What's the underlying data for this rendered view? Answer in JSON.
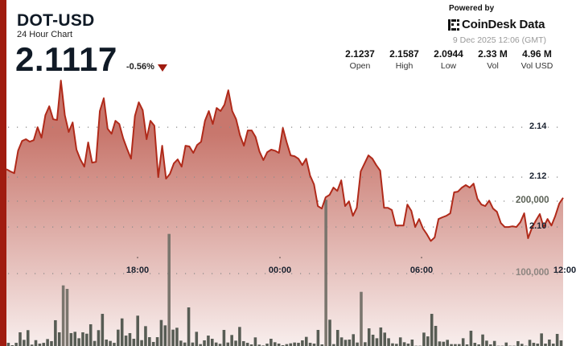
{
  "header": {
    "symbol": "DOT-USD",
    "subtitle": "24 Hour Chart",
    "price": "2.1117",
    "change": "-0.56%",
    "change_direction": "down",
    "powered_by": "Powered by",
    "brand": "CoinDesk Data",
    "timestamp": "9 Dec 2025 12:06 (GMT)"
  },
  "stats": [
    {
      "value": "2.1237",
      "label": "Open"
    },
    {
      "value": "2.1587",
      "label": "High"
    },
    {
      "value": "2.0944",
      "label": "Low"
    },
    {
      "value": "2.33 M",
      "label": "Vol"
    },
    {
      "value": "4.96 M",
      "label": "Vol USD"
    }
  ],
  "colors": {
    "accent": "#a01c10",
    "line": "#b02a1a",
    "fill_top": "#c8776d",
    "fill_bottom": "#f8eeed",
    "volume": "#575c54"
  },
  "chart_data": {
    "type": "area",
    "x_start": "12:10",
    "x_interval": "10 min",
    "x_ticks": [
      "18:00",
      "00:00",
      "06:00",
      "12:00"
    ],
    "price_ticks": [
      "2.14",
      "2.12",
      "2.10"
    ],
    "volume_ticks": [
      "200,000",
      "100,000"
    ],
    "price_ylim": [
      2.0523,
      2.191
    ],
    "volume_ylim": [
      0,
      477800
    ],
    "grid": "dotted horizontal",
    "series": [
      {
        "type": "area",
        "axis": "price",
        "values": [
          2.1232,
          2.1223,
          2.1216,
          2.1306,
          2.1345,
          2.1352,
          2.1342,
          2.1348,
          2.14,
          2.1358,
          2.1448,
          2.1484,
          2.1432,
          2.1429,
          2.1587,
          2.1448,
          2.1381,
          2.1419,
          2.131,
          2.1271,
          2.1242,
          2.1339,
          2.1258,
          2.1261,
          2.1465,
          2.1516,
          2.1394,
          2.1374,
          2.1426,
          2.1413,
          2.1355,
          2.1313,
          2.1274,
          2.1445,
          2.15,
          2.1468,
          2.1352,
          2.1426,
          2.1406,
          2.12,
          2.1326,
          2.1194,
          2.1213,
          2.1255,
          2.1271,
          2.1242,
          2.1326,
          2.1323,
          2.1297,
          2.1329,
          2.1342,
          2.1426,
          2.1465,
          2.1413,
          2.1477,
          2.1465,
          2.149,
          2.1548,
          2.1465,
          2.1432,
          2.1368,
          2.1326,
          2.1387,
          2.1387,
          2.1361,
          2.1303,
          2.1268,
          2.13,
          2.131,
          2.1306,
          2.1297,
          2.1397,
          2.1339,
          2.1287,
          2.1284,
          2.1274,
          2.1248,
          2.1274,
          2.1206,
          2.1171,
          2.1084,
          2.1074,
          2.1119,
          2.1129,
          2.1158,
          2.1145,
          2.1187,
          2.1084,
          2.1103,
          2.1045,
          2.1077,
          2.1223,
          2.1255,
          2.1287,
          2.1274,
          2.1248,
          2.1226,
          2.1077,
          2.1077,
          2.1068,
          2.1006,
          2.1006,
          2.1006,
          2.109,
          2.1065,
          2.1,
          2.1032,
          2.0994,
          2.0971,
          2.0944,
          2.0958,
          2.1032,
          2.1039,
          2.1045,
          2.1055,
          2.1139,
          2.1142,
          2.1158,
          2.1168,
          2.1158,
          2.1174,
          2.1113,
          2.109,
          2.1084,
          2.1106,
          2.1074,
          2.1061,
          2.1016,
          2.1,
          2.1,
          2.1003,
          2.1,
          2.1019,
          2.1055,
          2.0955,
          2.0997,
          2.1026,
          2.1052,
          2.1,
          2.1032,
          2.1006,
          2.1045,
          2.1094,
          2.1117
        ]
      },
      {
        "type": "bar",
        "axis": "volume",
        "values": [
          4400,
          1100,
          4400,
          18900,
          8500,
          21900,
          1900,
          8100,
          3300,
          4400,
          9600,
          6700,
          35600,
          18900,
          83700,
          78900,
          17800,
          19600,
          10700,
          18900,
          17000,
          30000,
          7000,
          21900,
          44400,
          8900,
          7000,
          4400,
          22600,
          38100,
          14400,
          17800,
          10000,
          41900,
          8100,
          27400,
          12200,
          5600,
          12200,
          35900,
          28500,
          154800,
          22600,
          25200,
          7400,
          4800,
          53300,
          4800,
          19600,
          2600,
          7800,
          14400,
          10000,
          4800,
          3000,
          22200,
          4800,
          15200,
          7400,
          26300,
          6700,
          4400,
          2200,
          11900,
          1900,
          700,
          3300,
          10000,
          5200,
          3300,
          1100,
          2600,
          3700,
          4800,
          4400,
          7800,
          12600,
          4400,
          3300,
          22200,
          2200,
          202000,
          36300,
          2600,
          22200,
          11900,
          8500,
          8900,
          16300,
          4800,
          74800,
          5200,
          24400,
          15600,
          10700,
          25600,
          18500,
          10700,
          3700,
          3000,
          11900,
          5200,
          3300,
          8900,
          400,
          400,
          18500,
          13300,
          44400,
          27800,
          6300,
          5900,
          8500,
          2600,
          2600,
          2600,
          10700,
          2200,
          21100,
          4400,
          2200,
          15900,
          7400,
          2200,
          7000,
          400,
          400,
          4800,
          400,
          400,
          6700,
          3000,
          400,
          8500,
          4400,
          3300,
          17400,
          3300,
          8900,
          3300,
          16700,
          7800
        ]
      }
    ]
  }
}
